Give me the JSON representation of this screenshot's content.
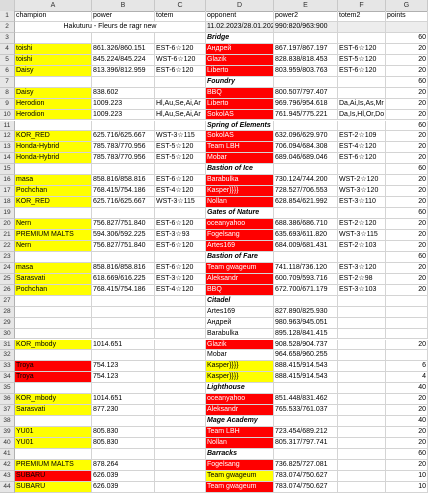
{
  "columns": [
    "A",
    "B",
    "C",
    "D",
    "E",
    "F",
    "G"
  ],
  "colors": {
    "yellow": "#ffff00",
    "red": "#ff0000",
    "header_gray": "#e6e6e6"
  },
  "rows": [
    {
      "n": "1",
      "cells": [
        {
          "t": "champion"
        },
        {
          "t": "power"
        },
        {
          "t": "totem"
        },
        {
          "t": "opponent"
        },
        {
          "t": "power2"
        },
        {
          "t": "totem2"
        },
        {
          "t": "points"
        }
      ]
    },
    {
      "n": "2",
      "cells": [
        {
          "t": "Hakuturu - Fleurs de ragr new",
          "span": 3,
          "center": true
        },
        {
          "t": "11.02.2023/28.01.2023",
          "bg": "lgray"
        },
        {
          "t": "990:820/963:900",
          "bg": "lgray"
        },
        {
          "t": "",
          "bg": "lgray"
        },
        {
          "t": "",
          "bg": "lgray"
        }
      ]
    },
    {
      "n": "3",
      "cells": [
        {
          "t": ""
        },
        {
          "t": ""
        },
        {
          "t": ""
        },
        {
          "t": "Bridge",
          "cls": "ital"
        },
        {
          "t": ""
        },
        {
          "t": ""
        },
        {
          "t": "60",
          "num": true
        }
      ]
    },
    {
      "n": "4",
      "cells": [
        {
          "t": "toishi",
          "bg": "yellow"
        },
        {
          "t": "861.326/860.151"
        },
        {
          "t": "EST-6☆120"
        },
        {
          "t": "Андрей",
          "bg": "red",
          "white": true
        },
        {
          "t": "867.197/867.197"
        },
        {
          "t": "EST-6☆120"
        },
        {
          "t": "20",
          "num": true
        }
      ]
    },
    {
      "n": "5",
      "cells": [
        {
          "t": "toishi",
          "bg": "yellow"
        },
        {
          "t": "845.224/845.224"
        },
        {
          "t": "WST-6☆120"
        },
        {
          "t": "Glazik",
          "bg": "red",
          "white": true
        },
        {
          "t": "828.838/818.453"
        },
        {
          "t": "EST-5☆120"
        },
        {
          "t": "20",
          "num": true
        }
      ]
    },
    {
      "n": "6",
      "cells": [
        {
          "t": "Daisy",
          "bg": "yellow"
        },
        {
          "t": "813.396/812.959"
        },
        {
          "t": "EST-6☆120"
        },
        {
          "t": "Liberto",
          "bg": "red",
          "white": true
        },
        {
          "t": "803.959/803.763"
        },
        {
          "t": "EST-6☆120"
        },
        {
          "t": "20",
          "num": true
        }
      ]
    },
    {
      "n": "7",
      "cells": [
        {
          "t": ""
        },
        {
          "t": ""
        },
        {
          "t": ""
        },
        {
          "t": "Foundry",
          "cls": "ital"
        },
        {
          "t": ""
        },
        {
          "t": ""
        },
        {
          "t": "60",
          "num": true
        }
      ]
    },
    {
      "n": "8",
      "cells": [
        {
          "t": "Daisy",
          "bg": "yellow"
        },
        {
          "t": "838.602"
        },
        {
          "t": ""
        },
        {
          "t": "BBQ",
          "bg": "red",
          "white": true
        },
        {
          "t": "800.507/797.407"
        },
        {
          "t": ""
        },
        {
          "t": "20",
          "num": true
        }
      ]
    },
    {
      "n": "9",
      "cells": [
        {
          "t": "Herodion",
          "bg": "yellow"
        },
        {
          "t": "1009.223"
        },
        {
          "t": "Hl,Au,Se,Ai,Ar"
        },
        {
          "t": "Liberto",
          "bg": "red",
          "white": true
        },
        {
          "t": "969.796/954.618"
        },
        {
          "t": "Da,Ai,Is,As,Mr"
        },
        {
          "t": "20",
          "num": true
        }
      ]
    },
    {
      "n": "10",
      "cells": [
        {
          "t": "Herodion",
          "bg": "yellow"
        },
        {
          "t": "1009.223"
        },
        {
          "t": "Hl,Au,Se,Ai,Ar"
        },
        {
          "t": "SokolAS",
          "bg": "red",
          "white": true
        },
        {
          "t": "761.945/775.221"
        },
        {
          "t": "Da,Is,Hl,Or,Do"
        },
        {
          "t": "20",
          "num": true
        }
      ]
    },
    {
      "n": "11",
      "cells": [
        {
          "t": ""
        },
        {
          "t": ""
        },
        {
          "t": ""
        },
        {
          "t": "Spring of Elements",
          "cls": "ital"
        },
        {
          "t": ""
        },
        {
          "t": ""
        },
        {
          "t": "60",
          "num": true
        }
      ]
    },
    {
      "n": "12",
      "cells": [
        {
          "t": "KOR_RED",
          "bg": "yellow"
        },
        {
          "t": "625.716/625.667"
        },
        {
          "t": "WST-3☆115"
        },
        {
          "t": "SokolAS",
          "bg": "red",
          "white": true
        },
        {
          "t": "632.096/629.970"
        },
        {
          "t": "EST-2☆109"
        },
        {
          "t": "20",
          "num": true
        }
      ]
    },
    {
      "n": "13",
      "cells": [
        {
          "t": "Honda-Hybrid",
          "bg": "yellow"
        },
        {
          "t": "785.783/770.956"
        },
        {
          "t": "EST-5☆120"
        },
        {
          "t": "Team LBH",
          "bg": "red",
          "white": true
        },
        {
          "t": "706.094/684.308"
        },
        {
          "t": "EST-4☆120"
        },
        {
          "t": "20",
          "num": true
        }
      ]
    },
    {
      "n": "14",
      "cells": [
        {
          "t": "Honda-Hybrid",
          "bg": "yellow"
        },
        {
          "t": "785.783/770.956"
        },
        {
          "t": "EST-5☆120"
        },
        {
          "t": "Mobar",
          "bg": "red",
          "white": true
        },
        {
          "t": "689.046/689.046"
        },
        {
          "t": "EST-6☆120"
        },
        {
          "t": "20",
          "num": true
        }
      ]
    },
    {
      "n": "15",
      "cells": [
        {
          "t": ""
        },
        {
          "t": ""
        },
        {
          "t": ""
        },
        {
          "t": "Bastion of Ice",
          "cls": "ital"
        },
        {
          "t": ""
        },
        {
          "t": ""
        },
        {
          "t": "60",
          "num": true
        }
      ]
    },
    {
      "n": "16",
      "cells": [
        {
          "t": "masa",
          "bg": "yellow"
        },
        {
          "t": "858.816/858.816"
        },
        {
          "t": "EST-6☆120"
        },
        {
          "t": "Barabulka",
          "bg": "red",
          "white": true
        },
        {
          "t": "730.124/744.200"
        },
        {
          "t": "WST-2☆120"
        },
        {
          "t": "20",
          "num": true
        }
      ]
    },
    {
      "n": "17",
      "cells": [
        {
          "t": "Pochchan",
          "bg": "yellow"
        },
        {
          "t": "768.415/754.186"
        },
        {
          "t": "EST-4☆120"
        },
        {
          "t": "Kasper}}}}",
          "bg": "red",
          "white": true
        },
        {
          "t": "728.527/706.553"
        },
        {
          "t": "WST-3☆120"
        },
        {
          "t": "20",
          "num": true
        }
      ]
    },
    {
      "n": "18",
      "cells": [
        {
          "t": "KOR_RED",
          "bg": "yellow"
        },
        {
          "t": "625.716/625.667"
        },
        {
          "t": "WST-3☆115"
        },
        {
          "t": "Nollan",
          "bg": "red",
          "white": true
        },
        {
          "t": "628.854/621.992"
        },
        {
          "t": "EST-3☆110"
        },
        {
          "t": "20",
          "num": true
        }
      ]
    },
    {
      "n": "19",
      "cells": [
        {
          "t": ""
        },
        {
          "t": ""
        },
        {
          "t": ""
        },
        {
          "t": "Gates of Nature",
          "cls": "ital"
        },
        {
          "t": ""
        },
        {
          "t": ""
        },
        {
          "t": "60",
          "num": true
        }
      ]
    },
    {
      "n": "20",
      "cells": [
        {
          "t": "Nern",
          "bg": "yellow"
        },
        {
          "t": "756.827/751.840"
        },
        {
          "t": "EST-6☆120"
        },
        {
          "t": "oceanyahoo",
          "bg": "red",
          "white": true
        },
        {
          "t": "688.386/686.710"
        },
        {
          "t": "EST-2☆120"
        },
        {
          "t": "20",
          "num": true
        }
      ]
    },
    {
      "n": "21",
      "cells": [
        {
          "t": "PREMIUM MALTS",
          "bg": "yellow"
        },
        {
          "t": "594.306/592.225"
        },
        {
          "t": "EST-3☆93"
        },
        {
          "t": "Fogelsang",
          "bg": "red",
          "white": true
        },
        {
          "t": "635.693/611.820"
        },
        {
          "t": "WST-3☆115"
        },
        {
          "t": "20",
          "num": true
        }
      ]
    },
    {
      "n": "22",
      "cells": [
        {
          "t": "Nern",
          "bg": "yellow"
        },
        {
          "t": "756.827/751.840"
        },
        {
          "t": "EST-6☆120"
        },
        {
          "t": "Artes169",
          "bg": "red",
          "white": true
        },
        {
          "t": "684.009/681.431"
        },
        {
          "t": "EST-2☆103"
        },
        {
          "t": "20",
          "num": true
        }
      ]
    },
    {
      "n": "23",
      "cells": [
        {
          "t": ""
        },
        {
          "t": ""
        },
        {
          "t": ""
        },
        {
          "t": "Bastion of Fare",
          "cls": "ital"
        },
        {
          "t": ""
        },
        {
          "t": ""
        },
        {
          "t": "60",
          "num": true
        }
      ]
    },
    {
      "n": "24",
      "cells": [
        {
          "t": "masa",
          "bg": "yellow"
        },
        {
          "t": "858.816/858.816"
        },
        {
          "t": "EST-6☆120"
        },
        {
          "t": "Team gwageum",
          "bg": "red",
          "white": true
        },
        {
          "t": "741.118/736.120"
        },
        {
          "t": "EST-3☆120"
        },
        {
          "t": "20",
          "num": true
        }
      ]
    },
    {
      "n": "25",
      "cells": [
        {
          "t": "Sarasvati",
          "bg": "yellow"
        },
        {
          "t": "618.669/616.225"
        },
        {
          "t": "EST-3☆120"
        },
        {
          "t": "Aleksandr",
          "bg": "red",
          "white": true
        },
        {
          "t": "600.709/593.716"
        },
        {
          "t": "EST-2☆98"
        },
        {
          "t": "20",
          "num": true
        }
      ]
    },
    {
      "n": "26",
      "cells": [
        {
          "t": "Pochchan",
          "bg": "yellow"
        },
        {
          "t": "768.415/754.186"
        },
        {
          "t": "EST-4☆120"
        },
        {
          "t": "BBQ",
          "bg": "red",
          "white": true
        },
        {
          "t": "672.700/671.179"
        },
        {
          "t": "EST-3☆103"
        },
        {
          "t": "20",
          "num": true
        }
      ]
    },
    {
      "n": "27",
      "cells": [
        {
          "t": ""
        },
        {
          "t": ""
        },
        {
          "t": ""
        },
        {
          "t": "Citadel",
          "cls": "ital"
        },
        {
          "t": ""
        },
        {
          "t": ""
        },
        {
          "t": ""
        }
      ]
    },
    {
      "n": "28",
      "cells": [
        {
          "t": ""
        },
        {
          "t": ""
        },
        {
          "t": ""
        },
        {
          "t": "Artes169"
        },
        {
          "t": "827.890/825.930"
        },
        {
          "t": ""
        },
        {
          "t": ""
        }
      ]
    },
    {
      "n": "29",
      "cells": [
        {
          "t": ""
        },
        {
          "t": ""
        },
        {
          "t": ""
        },
        {
          "t": "Андрей"
        },
        {
          "t": "980.963/945.051"
        },
        {
          "t": ""
        },
        {
          "t": ""
        }
      ]
    },
    {
      "n": "30",
      "cells": [
        {
          "t": ""
        },
        {
          "t": ""
        },
        {
          "t": ""
        },
        {
          "t": "Barabulka"
        },
        {
          "t": "895.128/841.415"
        },
        {
          "t": ""
        },
        {
          "t": ""
        }
      ]
    },
    {
      "n": "31",
      "cells": [
        {
          "t": "KOR_mbody",
          "bg": "yellow"
        },
        {
          "t": "1014.651"
        },
        {
          "t": ""
        },
        {
          "t": "Glazik",
          "bg": "red",
          "white": true
        },
        {
          "t": "908.528/904.737"
        },
        {
          "t": ""
        },
        {
          "t": "20",
          "num": true
        }
      ]
    },
    {
      "n": "32",
      "cells": [
        {
          "t": ""
        },
        {
          "t": ""
        },
        {
          "t": ""
        },
        {
          "t": "Mobar"
        },
        {
          "t": "964.658/960.255"
        },
        {
          "t": ""
        },
        {
          "t": ""
        }
      ]
    },
    {
      "n": "33",
      "cells": [
        {
          "t": "Troya",
          "bg": "red"
        },
        {
          "t": "754.123"
        },
        {
          "t": ""
        },
        {
          "t": "Kasper}}}}",
          "bg": "yellow"
        },
        {
          "t": "888.415/914.543"
        },
        {
          "t": ""
        },
        {
          "t": "6",
          "num": true
        }
      ]
    },
    {
      "n": "34",
      "cells": [
        {
          "t": "Troya",
          "bg": "red"
        },
        {
          "t": "754.123"
        },
        {
          "t": ""
        },
        {
          "t": "Kasper}}}}",
          "bg": "yellow"
        },
        {
          "t": "888.415/914.543"
        },
        {
          "t": ""
        },
        {
          "t": "4",
          "num": true
        }
      ]
    },
    {
      "n": "35",
      "cells": [
        {
          "t": ""
        },
        {
          "t": ""
        },
        {
          "t": ""
        },
        {
          "t": "Lighthouse",
          "cls": "ital"
        },
        {
          "t": ""
        },
        {
          "t": ""
        },
        {
          "t": "40",
          "num": true
        }
      ]
    },
    {
      "n": "36",
      "cells": [
        {
          "t": "KOR_mbody",
          "bg": "yellow"
        },
        {
          "t": "1014.651"
        },
        {
          "t": ""
        },
        {
          "t": "oceanyahoo",
          "bg": "red",
          "white": true
        },
        {
          "t": "851.448/831.462"
        },
        {
          "t": ""
        },
        {
          "t": "20",
          "num": true
        }
      ]
    },
    {
      "n": "37",
      "cells": [
        {
          "t": "Sarasvati",
          "bg": "yellow"
        },
        {
          "t": "877.230"
        },
        {
          "t": ""
        },
        {
          "t": "Aleksandr",
          "bg": "red",
          "white": true
        },
        {
          "t": "765.533/761.037"
        },
        {
          "t": ""
        },
        {
          "t": "20",
          "num": true
        }
      ]
    },
    {
      "n": "38",
      "cells": [
        {
          "t": ""
        },
        {
          "t": ""
        },
        {
          "t": ""
        },
        {
          "t": "Mage Academy",
          "cls": "ital"
        },
        {
          "t": ""
        },
        {
          "t": ""
        },
        {
          "t": "40",
          "num": true
        }
      ]
    },
    {
      "n": "39",
      "cells": [
        {
          "t": "YU01",
          "bg": "yellow"
        },
        {
          "t": "805.830"
        },
        {
          "t": ""
        },
        {
          "t": "Team LBH",
          "bg": "red",
          "white": true
        },
        {
          "t": "723.454/689.212"
        },
        {
          "t": ""
        },
        {
          "t": "20",
          "num": true
        }
      ]
    },
    {
      "n": "40",
      "cells": [
        {
          "t": "YU01",
          "bg": "yellow"
        },
        {
          "t": "805.830"
        },
        {
          "t": ""
        },
        {
          "t": "Nollan",
          "bg": "red",
          "white": true
        },
        {
          "t": "805.317/797.741"
        },
        {
          "t": ""
        },
        {
          "t": "20",
          "num": true
        }
      ]
    },
    {
      "n": "41",
      "cells": [
        {
          "t": ""
        },
        {
          "t": ""
        },
        {
          "t": ""
        },
        {
          "t": "Barracks",
          "cls": "ital"
        },
        {
          "t": ""
        },
        {
          "t": ""
        },
        {
          "t": "60",
          "num": true
        }
      ]
    },
    {
      "n": "42",
      "cells": [
        {
          "t": "PREMIUM MALTS",
          "bg": "yellow"
        },
        {
          "t": "878.264"
        },
        {
          "t": ""
        },
        {
          "t": "Fogelsang",
          "bg": "red",
          "white": true
        },
        {
          "t": "736.825/727.081"
        },
        {
          "t": ""
        },
        {
          "t": "20",
          "num": true
        }
      ]
    },
    {
      "n": "43",
      "cells": [
        {
          "t": "SUBARU",
          "bg": "red"
        },
        {
          "t": "626.039"
        },
        {
          "t": ""
        },
        {
          "t": "Team gwageum",
          "bg": "yellow"
        },
        {
          "t": "783.074/750.627"
        },
        {
          "t": ""
        },
        {
          "t": "10",
          "num": true
        }
      ]
    },
    {
      "n": "44",
      "cells": [
        {
          "t": "SUBARU",
          "bg": "yellow"
        },
        {
          "t": "626.039"
        },
        {
          "t": ""
        },
        {
          "t": "Team gwageum",
          "bg": "red",
          "white": true
        },
        {
          "t": "783.074/750.627"
        },
        {
          "t": ""
        },
        {
          "t": "10",
          "num": true
        }
      ]
    }
  ]
}
